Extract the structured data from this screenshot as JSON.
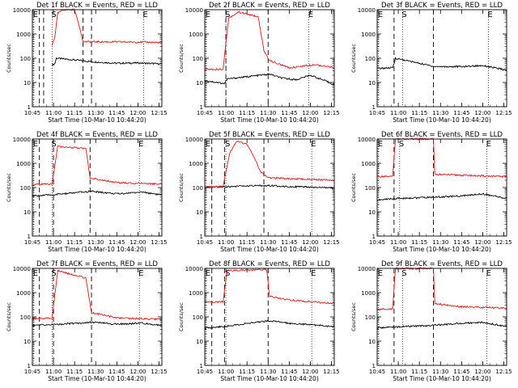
{
  "chart_data": [
    {
      "type": "line",
      "title": "Det 1f BLACK = Events, RED = LLD",
      "xlabel": "Start Time (10-Mar-10 10:44:20)",
      "ylabel": "Counts/sec",
      "xlim_min": [
        0,
        92
      ],
      "ylim": [
        1,
        10000
      ],
      "yscale": "log",
      "xticks": [
        "10:45",
        "11:00",
        "11:15",
        "11:30",
        "11:45",
        "12:00",
        "12:15"
      ],
      "yticks": [
        "1",
        "10",
        "100",
        "1000",
        "10000"
      ],
      "markers": [
        {
          "label": "E",
          "x_min": 1
        },
        {
          "label": "S",
          "x_min": 14
        },
        {
          "label": "E",
          "x_min": 79
        }
      ],
      "attenuator_x_min": [
        5,
        8,
        36,
        42
      ],
      "series": [
        {
          "name": "Events",
          "color": "#000000",
          "values": [
            {
              "x": 14,
              "y": 52
            },
            {
              "x": 16,
              "y": 60
            },
            {
              "x": 17,
              "y": 100
            },
            {
              "x": 45,
              "y": 70
            },
            {
              "x": 60,
              "y": 62
            },
            {
              "x": 75,
              "y": 64
            },
            {
              "x": 92,
              "y": 58
            }
          ]
        },
        {
          "name": "LLD",
          "color": "#d21a1a",
          "values": [
            {
              "x": 14,
              "y": 330
            },
            {
              "x": 16,
              "y": 800
            },
            {
              "x": 18,
              "y": 7000
            },
            {
              "x": 22,
              "y": 10000
            },
            {
              "x": 30,
              "y": 10000
            },
            {
              "x": 34,
              "y": 1500
            },
            {
              "x": 36,
              "y": 480
            },
            {
              "x": 60,
              "y": 470
            },
            {
              "x": 80,
              "y": 460
            },
            {
              "x": 92,
              "y": 440
            }
          ]
        }
      ]
    },
    {
      "type": "line",
      "title": "Det 2f BLACK = Events, RED = LLD",
      "xlabel": "Start Time (10-Mar-10 10:44:20)",
      "ylabel": "Counts/sec",
      "xlim_min": [
        0,
        92
      ],
      "ylim": [
        1,
        10000
      ],
      "yscale": "log",
      "xticks": [
        "10:45",
        "11:00",
        "11:15",
        "11:30",
        "11:45",
        "12:00",
        "12:15"
      ],
      "yticks": [
        "1",
        "10",
        "100",
        "1000",
        "10000"
      ],
      "markers": [
        {
          "label": "E",
          "x_min": 1
        },
        {
          "label": "S",
          "x_min": 15
        },
        {
          "label": "E",
          "x_min": 74
        }
      ],
      "attenuator_x_min": [
        15,
        45
      ],
      "series": [
        {
          "name": "Events",
          "color": "#000000",
          "values": [
            {
              "x": 0,
              "y": 12
            },
            {
              "x": 14,
              "y": 9
            },
            {
              "x": 16,
              "y": 14
            },
            {
              "x": 46,
              "y": 22
            },
            {
              "x": 55,
              "y": 15
            },
            {
              "x": 65,
              "y": 13
            },
            {
              "x": 75,
              "y": 20
            },
            {
              "x": 85,
              "y": 12
            },
            {
              "x": 92,
              "y": 8
            }
          ]
        },
        {
          "name": "LLD",
          "color": "#d21a1a",
          "values": [
            {
              "x": 0,
              "y": 35
            },
            {
              "x": 13,
              "y": 35
            },
            {
              "x": 17,
              "y": 4500
            },
            {
              "x": 24,
              "y": 8000
            },
            {
              "x": 33,
              "y": 6000
            },
            {
              "x": 38,
              "y": 5000
            },
            {
              "x": 42,
              "y": 200
            },
            {
              "x": 46,
              "y": 80
            },
            {
              "x": 60,
              "y": 40
            },
            {
              "x": 78,
              "y": 55
            },
            {
              "x": 92,
              "y": 40
            }
          ]
        }
      ]
    },
    {
      "type": "line",
      "title": "Det 3f BLACK = Events, RED = LLD",
      "xlabel": "Start Time (10-Mar-10 10:44:20)",
      "ylabel": "Counts/sec",
      "xlim_min": [
        0,
        92
      ],
      "ylim": [
        1,
        10000
      ],
      "yscale": "log",
      "xticks": [
        "10:45",
        "11:00",
        "11:15",
        "11:30",
        "11:45",
        "12:00",
        "12:15"
      ],
      "yticks": [
        "1",
        "10",
        "100",
        "1000",
        "10000"
      ],
      "markers": [
        {
          "label": "E",
          "x_min": 1
        },
        {
          "label": "S",
          "x_min": 18
        },
        {
          "label": "E",
          "x_min": 79
        }
      ],
      "attenuator_x_min": [
        12,
        40
      ],
      "series": [
        {
          "name": "Events",
          "color": "#000000",
          "values": [
            {
              "x": 0,
              "y": 38
            },
            {
              "x": 11,
              "y": 40
            },
            {
              "x": 12,
              "y": 60
            },
            {
              "x": 13,
              "y": 100
            },
            {
              "x": 41,
              "y": 45
            },
            {
              "x": 60,
              "y": 45
            },
            {
              "x": 75,
              "y": 50
            },
            {
              "x": 92,
              "y": 32
            }
          ]
        },
        {
          "name": "LLD",
          "color": "#d21a1a",
          "values": []
        }
      ]
    },
    {
      "type": "line",
      "title": "Det 4f BLACK = Events, RED = LLD",
      "xlabel": "Start Time (10-Mar-10 10:44:20)",
      "ylabel": "Counts/sec",
      "xlim_min": [
        0,
        92
      ],
      "ylim": [
        1,
        10000
      ],
      "yscale": "log",
      "xticks": [
        "10:45",
        "11:00",
        "11:15",
        "11:30",
        "11:45",
        "12:00",
        "12:15"
      ],
      "yticks": [
        "1",
        "10",
        "100",
        "1000",
        "10000"
      ],
      "markers": [
        {
          "label": "E",
          "x_min": 1
        },
        {
          "label": "S",
          "x_min": 14
        },
        {
          "label": "E",
          "x_min": 76
        }
      ],
      "attenuator_x_min": [
        5,
        15,
        41
      ],
      "series": [
        {
          "name": "Events",
          "color": "#000000",
          "values": [
            {
              "x": 0,
              "y": 45
            },
            {
              "x": 14,
              "y": 50
            },
            {
              "x": 42,
              "y": 70
            },
            {
              "x": 60,
              "y": 55
            },
            {
              "x": 78,
              "y": 65
            },
            {
              "x": 92,
              "y": 50
            }
          ]
        },
        {
          "name": "LLD",
          "color": "#d21a1a",
          "values": [
            {
              "x": 0,
              "y": 130
            },
            {
              "x": 14,
              "y": 140
            },
            {
              "x": 18,
              "y": 5000
            },
            {
              "x": 38,
              "y": 4000
            },
            {
              "x": 41,
              "y": 250
            },
            {
              "x": 60,
              "y": 160
            },
            {
              "x": 92,
              "y": 140
            }
          ]
        }
      ]
    },
    {
      "type": "line",
      "title": "Det 5f BLACK = Events, RED = LLD",
      "xlabel": "Start Time (10-Mar-10 10:44:20)",
      "ylabel": "Counts/sec",
      "xlim_min": [
        0,
        92
      ],
      "ylim": [
        1,
        10000
      ],
      "yscale": "log",
      "xticks": [
        "10:45",
        "11:00",
        "11:15",
        "11:30",
        "11:45",
        "12:00",
        "12:15"
      ],
      "yticks": [
        "1",
        "10",
        "100",
        "1000",
        "10000"
      ],
      "markers": [
        {
          "label": "E",
          "x_min": 1
        },
        {
          "label": "S",
          "x_min": 15
        },
        {
          "label": "E",
          "x_min": 76
        }
      ],
      "attenuator_x_min": [
        5,
        14,
        42
      ],
      "series": [
        {
          "name": "Events",
          "color": "#000000",
          "values": [
            {
              "x": 0,
              "y": 100
            },
            {
              "x": 14,
              "y": 110
            },
            {
              "x": 45,
              "y": 120
            },
            {
              "x": 60,
              "y": 110
            },
            {
              "x": 92,
              "y": 95
            }
          ]
        },
        {
          "name": "LLD",
          "color": "#d21a1a",
          "values": [
            {
              "x": 0,
              "y": 105
            },
            {
              "x": 13,
              "y": 110
            },
            {
              "x": 18,
              "y": 3000
            },
            {
              "x": 23,
              "y": 8000
            },
            {
              "x": 30,
              "y": 6000
            },
            {
              "x": 35,
              "y": 1800
            },
            {
              "x": 40,
              "y": 400
            },
            {
              "x": 46,
              "y": 250
            },
            {
              "x": 92,
              "y": 200
            }
          ]
        }
      ]
    },
    {
      "type": "line",
      "title": "Det 6f BLACK = Events, RED = LLD",
      "xlabel": "Start Time (10-Mar-10 10:44:20)",
      "ylabel": "Counts/sec",
      "xlim_min": [
        0,
        92
      ],
      "ylim": [
        1,
        10000
      ],
      "yscale": "log",
      "xticks": [
        "10:45",
        "11:00",
        "11:15",
        "11:30",
        "11:45",
        "12:00",
        "12:15"
      ],
      "yticks": [
        "1",
        "10",
        "100",
        "1000",
        "10000"
      ],
      "markers": [
        {
          "label": "E",
          "x_min": 1
        },
        {
          "label": "S",
          "x_min": 16
        },
        {
          "label": "E",
          "x_min": 78
        }
      ],
      "attenuator_x_min": [
        12,
        40
      ],
      "series": [
        {
          "name": "Events",
          "color": "#000000",
          "values": [
            {
              "x": 0,
              "y": 30
            },
            {
              "x": 11,
              "y": 35
            },
            {
              "x": 41,
              "y": 40
            },
            {
              "x": 60,
              "y": 45
            },
            {
              "x": 75,
              "y": 55
            },
            {
              "x": 92,
              "y": 35
            }
          ]
        },
        {
          "name": "LLD",
          "color": "#d21a1a",
          "values": [
            {
              "x": 0,
              "y": 280
            },
            {
              "x": 11,
              "y": 290
            },
            {
              "x": 13,
              "y": 10000
            },
            {
              "x": 40,
              "y": 10000
            },
            {
              "x": 41,
              "y": 350
            },
            {
              "x": 92,
              "y": 280
            }
          ]
        }
      ]
    },
    {
      "type": "line",
      "title": "Det 7f BLACK = Events, RED = LLD",
      "xlabel": "Start Time (10-Mar-10 10:44:20)",
      "ylabel": "Counts/sec",
      "xlim_min": [
        0,
        92
      ],
      "ylim": [
        1,
        10000
      ],
      "yscale": "log",
      "xticks": [
        "10:45",
        "11:00",
        "11:15",
        "11:30",
        "11:45",
        "12:00",
        "12:15"
      ],
      "yticks": [
        "1",
        "10",
        "100",
        "1000",
        "10000"
      ],
      "markers": [
        {
          "label": "E",
          "x_min": 1
        },
        {
          "label": "S",
          "x_min": 14
        },
        {
          "label": "E",
          "x_min": 76
        }
      ],
      "attenuator_x_min": [
        5,
        15,
        42
      ],
      "series": [
        {
          "name": "Events",
          "color": "#000000",
          "values": [
            {
              "x": 0,
              "y": 45
            },
            {
              "x": 14,
              "y": 48
            },
            {
              "x": 43,
              "y": 60
            },
            {
              "x": 60,
              "y": 50
            },
            {
              "x": 78,
              "y": 55
            },
            {
              "x": 92,
              "y": 45
            }
          ]
        },
        {
          "name": "LLD",
          "color": "#d21a1a",
          "values": [
            {
              "x": 0,
              "y": 85
            },
            {
              "x": 14,
              "y": 90
            },
            {
              "x": 18,
              "y": 8000
            },
            {
              "x": 38,
              "y": 4000
            },
            {
              "x": 42,
              "y": 150
            },
            {
              "x": 60,
              "y": 90
            },
            {
              "x": 92,
              "y": 80
            }
          ]
        }
      ]
    },
    {
      "type": "line",
      "title": "Det 8f BLACK = Events, RED = LLD",
      "xlabel": "Start Time (10-Mar-10 10:44:20)",
      "ylabel": "Counts/sec",
      "xlim_min": [
        0,
        92
      ],
      "ylim": [
        1,
        10000
      ],
      "yscale": "log",
      "xticks": [
        "10:45",
        "11:00",
        "11:15",
        "11:30",
        "11:45",
        "12:00",
        "12:15"
      ],
      "yticks": [
        "1",
        "10",
        "100",
        "1000",
        "10000"
      ],
      "markers": [
        {
          "label": "E",
          "x_min": 1
        },
        {
          "label": "S",
          "x_min": 15
        },
        {
          "label": "E",
          "x_min": 76
        }
      ],
      "attenuator_x_min": [
        5,
        14,
        45
      ],
      "series": [
        {
          "name": "Events",
          "color": "#000000",
          "values": [
            {
              "x": 0,
              "y": 35
            },
            {
              "x": 13,
              "y": 40
            },
            {
              "x": 46,
              "y": 70
            },
            {
              "x": 60,
              "y": 55
            },
            {
              "x": 92,
              "y": 40
            }
          ]
        },
        {
          "name": "LLD",
          "color": "#d21a1a",
          "values": [
            {
              "x": 0,
              "y": 400
            },
            {
              "x": 13,
              "y": 420
            },
            {
              "x": 16,
              "y": 8000
            },
            {
              "x": 44,
              "y": 9000
            },
            {
              "x": 46,
              "y": 700
            },
            {
              "x": 60,
              "y": 500
            },
            {
              "x": 92,
              "y": 350
            }
          ]
        }
      ]
    },
    {
      "type": "line",
      "title": "Det 9f BLACK = Events, RED = LLD",
      "xlabel": "Start Time (10-Mar-10 10:44:20)",
      "ylabel": "Counts/sec",
      "xlim_min": [
        0,
        92
      ],
      "ylim": [
        1,
        10000
      ],
      "yscale": "log",
      "xticks": [
        "10:45",
        "11:00",
        "11:15",
        "11:30",
        "11:45",
        "12:00",
        "12:15"
      ],
      "yticks": [
        "1",
        "10",
        "100",
        "1000",
        "10000"
      ],
      "markers": [
        {
          "label": "E",
          "x_min": 1
        },
        {
          "label": "S",
          "x_min": 18
        },
        {
          "label": "E",
          "x_min": 78
        }
      ],
      "attenuator_x_min": [
        12,
        40
      ],
      "series": [
        {
          "name": "Events",
          "color": "#000000",
          "values": [
            {
              "x": 0,
              "y": 35
            },
            {
              "x": 11,
              "y": 38
            },
            {
              "x": 41,
              "y": 45
            },
            {
              "x": 60,
              "y": 55
            },
            {
              "x": 75,
              "y": 60
            },
            {
              "x": 92,
              "y": 40
            }
          ]
        },
        {
          "name": "LLD",
          "color": "#d21a1a",
          "values": [
            {
              "x": 0,
              "y": 200
            },
            {
              "x": 11,
              "y": 220
            },
            {
              "x": 13,
              "y": 10000
            },
            {
              "x": 40,
              "y": 10000
            },
            {
              "x": 41,
              "y": 350
            },
            {
              "x": 60,
              "y": 260
            },
            {
              "x": 92,
              "y": 230
            }
          ]
        }
      ]
    }
  ]
}
